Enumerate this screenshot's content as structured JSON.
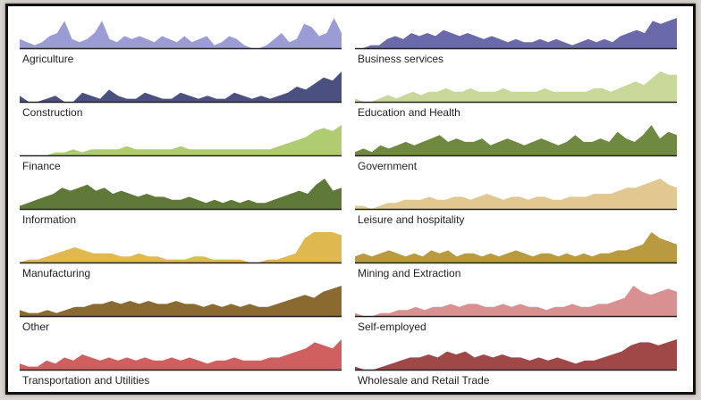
{
  "chart_data": {
    "type": "area",
    "title": "",
    "layout": "small multiples, 7 rows x 2 columns",
    "series": [
      {
        "name": "Agriculture",
        "color": "#9b9bd6",
        "values": [
          3,
          2,
          1,
          2,
          4,
          5,
          9,
          3,
          2,
          3,
          5,
          9,
          3,
          2,
          4,
          3,
          4,
          3,
          2,
          4,
          3,
          2,
          4,
          2,
          3,
          4,
          1,
          2,
          4,
          3,
          1,
          0,
          0,
          1,
          3,
          5,
          2,
          3,
          8,
          7,
          4,
          5,
          10,
          5
        ]
      },
      {
        "name": "Business services",
        "color": "#6a6aaa",
        "values": [
          0,
          0,
          1,
          1,
          3,
          4,
          3,
          5,
          4,
          5,
          4,
          6,
          5,
          4,
          5,
          4,
          3,
          4,
          3,
          2,
          3,
          2,
          2,
          3,
          2,
          3,
          2,
          1,
          2,
          3,
          2,
          3,
          2,
          4,
          5,
          6,
          5,
          9,
          8,
          9,
          10
        ]
      },
      {
        "name": "Construction",
        "color": "#4a5080",
        "values": [
          2,
          0,
          0,
          1,
          2,
          0,
          0,
          3,
          2,
          1,
          4,
          2,
          1,
          1,
          3,
          2,
          1,
          1,
          3,
          2,
          1,
          2,
          1,
          1,
          3,
          2,
          1,
          2,
          1,
          2,
          3,
          5,
          4,
          6,
          8,
          7,
          10
        ]
      },
      {
        "name": "Education and Health",
        "color": "#c8d898",
        "values": [
          1,
          0,
          0,
          1,
          2,
          1,
          2,
          3,
          2,
          3,
          3,
          4,
          3,
          3,
          4,
          3,
          3,
          3,
          4,
          3,
          3,
          3,
          3,
          4,
          3,
          3,
          3,
          3,
          3,
          4,
          4,
          3,
          4,
          5,
          6,
          5,
          7,
          9,
          8,
          8
        ]
      },
      {
        "name": "Finance",
        "color": "#b0cc70",
        "values": [
          0,
          0,
          0,
          0,
          1,
          1,
          2,
          1,
          2,
          2,
          2,
          2,
          3,
          2,
          2,
          2,
          2,
          2,
          3,
          2,
          2,
          2,
          2,
          2,
          2,
          2,
          2,
          2,
          2,
          3,
          4,
          5,
          6,
          8,
          9,
          8,
          10
        ]
      },
      {
        "name": "Government",
        "color": "#6f8a40",
        "values": [
          1,
          2,
          1,
          3,
          2,
          3,
          4,
          3,
          4,
          5,
          6,
          4,
          5,
          4,
          4,
          5,
          3,
          4,
          5,
          4,
          3,
          4,
          5,
          4,
          3,
          4,
          6,
          4,
          4,
          5,
          4,
          7,
          5,
          4,
          6,
          9,
          5,
          7,
          6
        ]
      },
      {
        "name": "Information",
        "color": "#5f7a38",
        "values": [
          1,
          2,
          3,
          4,
          5,
          7,
          6,
          7,
          8,
          6,
          7,
          5,
          6,
          5,
          4,
          5,
          4,
          4,
          3,
          3,
          4,
          3,
          2,
          3,
          2,
          3,
          2,
          3,
          2,
          2,
          3,
          4,
          5,
          6,
          5,
          8,
          10,
          6,
          7
        ]
      },
      {
        "name": "Leisure and hospitality",
        "color": "#e0c890",
        "values": [
          1,
          1,
          0,
          1,
          2,
          2,
          3,
          3,
          3,
          4,
          3,
          3,
          4,
          4,
          3,
          4,
          5,
          4,
          3,
          4,
          4,
          3,
          4,
          4,
          3,
          3,
          4,
          4,
          4,
          5,
          5,
          5,
          6,
          7,
          7,
          8,
          9,
          10,
          8,
          7
        ]
      },
      {
        "name": "Manufacturing",
        "color": "#e0b850",
        "values": [
          0,
          1,
          1,
          2,
          3,
          4,
          5,
          4,
          3,
          3,
          3,
          2,
          2,
          3,
          2,
          2,
          1,
          1,
          1,
          2,
          2,
          1,
          1,
          1,
          1,
          0,
          0,
          1,
          1,
          2,
          3,
          8,
          10,
          10,
          10,
          9
        ]
      },
      {
        "name": "Mining and Extraction",
        "color": "#b89a40",
        "values": [
          2,
          3,
          2,
          3,
          4,
          3,
          2,
          3,
          2,
          4,
          3,
          4,
          2,
          3,
          3,
          2,
          3,
          2,
          3,
          4,
          3,
          2,
          3,
          3,
          2,
          3,
          2,
          3,
          2,
          3,
          3,
          4,
          4,
          5,
          6,
          10,
          8,
          7,
          6
        ]
      },
      {
        "name": "Other",
        "color": "#8a6a30",
        "values": [
          2,
          1,
          1,
          2,
          1,
          2,
          3,
          3,
          4,
          4,
          5,
          4,
          5,
          4,
          5,
          4,
          4,
          5,
          4,
          4,
          3,
          4,
          3,
          4,
          3,
          4,
          3,
          3,
          4,
          5,
          6,
          7,
          6,
          8,
          9,
          10
        ]
      },
      {
        "name": "Self-employed",
        "color": "#d89090",
        "values": [
          1,
          0,
          0,
          1,
          1,
          2,
          2,
          3,
          2,
          3,
          3,
          4,
          3,
          4,
          4,
          3,
          3,
          4,
          3,
          4,
          3,
          3,
          2,
          3,
          3,
          4,
          3,
          3,
          4,
          4,
          5,
          6,
          10,
          8,
          7,
          8,
          9,
          8
        ]
      },
      {
        "name": "Transportation and Utilities",
        "color": "#d06060",
        "values": [
          2,
          1,
          1,
          3,
          2,
          4,
          3,
          5,
          4,
          3,
          4,
          3,
          4,
          3,
          4,
          3,
          3,
          4,
          3,
          4,
          3,
          2,
          3,
          3,
          4,
          3,
          3,
          3,
          4,
          4,
          5,
          6,
          7,
          9,
          8,
          7,
          10
        ]
      },
      {
        "name": "Wholesale and Retail Trade",
        "color": "#a04848",
        "values": [
          1,
          0,
          0,
          1,
          2,
          3,
          4,
          4,
          5,
          4,
          6,
          5,
          6,
          4,
          5,
          4,
          5,
          4,
          4,
          3,
          4,
          3,
          4,
          3,
          2,
          3,
          3,
          4,
          5,
          6,
          8,
          9,
          9,
          8,
          9,
          10
        ]
      }
    ]
  }
}
